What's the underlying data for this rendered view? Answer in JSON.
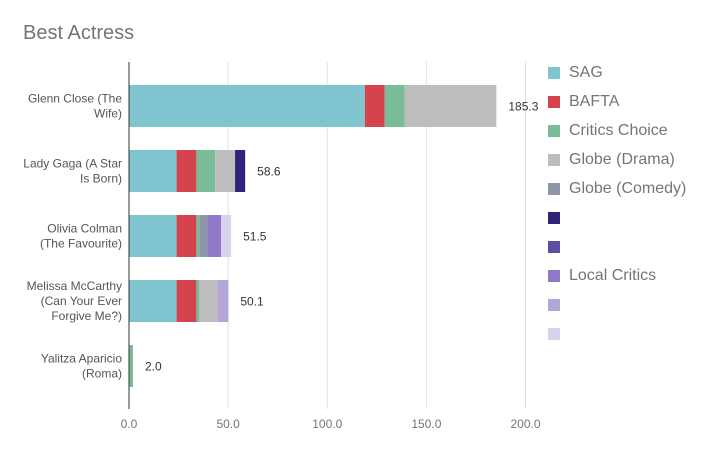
{
  "chart_data": {
    "type": "bar",
    "orientation": "horizontal",
    "stacked": true,
    "title": "Best Actress",
    "xlabel": "",
    "ylabel": "",
    "xlim": [
      0,
      200
    ],
    "x_ticks": [
      "0.0",
      "50.0",
      "100.0",
      "150.0",
      "200.0"
    ],
    "grid": true,
    "legend_position": "right",
    "categories": [
      [
        "Glenn Close (The",
        "Wife)"
      ],
      [
        "Lady Gaga (A Star",
        "Is Born)"
      ],
      [
        "Olivia Colman",
        "(The Favourite)"
      ],
      [
        "Melissa McCarthy",
        "(Can Your Ever",
        "Forgive Me?)"
      ],
      [
        "Yalitza Aparicio",
        "(Roma)"
      ]
    ],
    "totals": [
      "185.3",
      "58.6",
      "51.5",
      "50.1",
      "2.0"
    ],
    "series": [
      {
        "name": "SAG",
        "color": "#7fc4cf",
        "values": [
          119,
          24,
          24,
          24,
          0
        ]
      },
      {
        "name": "BAFTA",
        "color": "#d5444c",
        "values": [
          10,
          10,
          10,
          10,
          0
        ]
      },
      {
        "name": "Critics Choice",
        "color": "#79bc97",
        "values": [
          10,
          9.5,
          1.5,
          1.5,
          2
        ]
      },
      {
        "name": "Globe (Drama)",
        "color": "#bdbdbd",
        "values": [
          46.3,
          10,
          0,
          9,
          0
        ]
      },
      {
        "name": "Globe (Comedy)",
        "color": "#8f96a8",
        "values": [
          0,
          0,
          4,
          0,
          0
        ]
      },
      {
        "name": "",
        "color": "#32237a",
        "values": [
          0,
          5.1,
          0,
          0,
          0
        ]
      },
      {
        "name": "",
        "color": "#5e4ea3",
        "values": [
          0,
          0,
          0,
          0,
          0
        ]
      },
      {
        "name": "Local Critics",
        "color": "#8e79c7",
        "values": [
          0,
          0,
          7,
          0,
          0
        ]
      },
      {
        "name": "",
        "color": "#b3a5d8",
        "values": [
          0,
          0,
          0,
          5.6,
          0
        ]
      },
      {
        "name": "",
        "color": "#d9d2ec",
        "values": [
          0,
          0,
          5,
          0,
          0
        ]
      }
    ]
  }
}
